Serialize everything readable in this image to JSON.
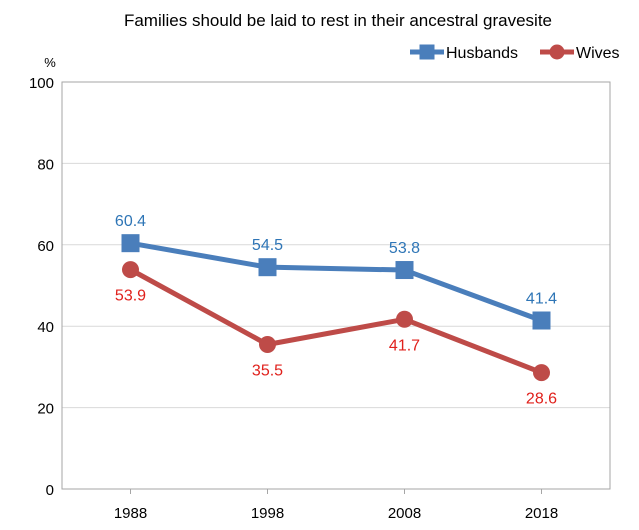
{
  "chart_data": {
    "type": "line",
    "title": "Families should be laid to rest in their ancestral gravesite",
    "ylabel": "%",
    "xlabel": "",
    "categories": [
      "1988",
      "1998",
      "2008",
      "2018"
    ],
    "ylim": [
      0,
      100
    ],
    "yticks": [
      0,
      20,
      40,
      60,
      80,
      100
    ],
    "grid": true,
    "legend": "top-right",
    "series": [
      {
        "name": "Husbands",
        "values": [
          60.4,
          54.5,
          53.8,
          41.4
        ],
        "labels": [
          "60.4",
          "54.5",
          "53.8",
          "41.4"
        ],
        "color": "#4a7ebb",
        "label_color": "#2e75b6",
        "marker": "square",
        "label_position": "above"
      },
      {
        "name": "Wives",
        "values": [
          53.9,
          35.5,
          41.7,
          28.6
        ],
        "labels": [
          "53.9",
          "35.5",
          "41.7",
          "28.6"
        ],
        "color": "#be4b48",
        "label_color": "#e0201b",
        "marker": "circle",
        "label_position": "below"
      }
    ]
  }
}
